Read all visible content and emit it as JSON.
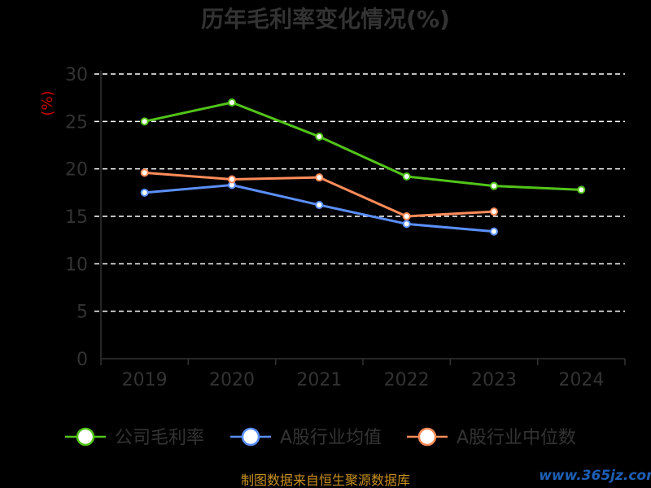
{
  "chart_data": {
    "type": "line",
    "title": "历年毛利率变化情况(%)",
    "ylabel": "(%)",
    "categories": [
      "2019",
      "2020",
      "2021",
      "2022",
      "2023",
      "2024"
    ],
    "ylim": [
      0,
      30
    ],
    "yticks": [
      0,
      5,
      10,
      15,
      20,
      25,
      30
    ],
    "grid": true,
    "legend_position": "bottom",
    "series": [
      {
        "name": "公司毛利率",
        "color": "#52c41a",
        "values": [
          25.0,
          27.0,
          23.4,
          19.2,
          18.2,
          17.8
        ]
      },
      {
        "name": "A股行业均值",
        "color": "#5b8ff9",
        "values": [
          17.5,
          18.3,
          16.2,
          14.2,
          13.4,
          null
        ]
      },
      {
        "name": "A股行业中位数",
        "color": "#ff8c5a",
        "values": [
          19.6,
          18.9,
          19.1,
          15.0,
          15.5,
          null
        ]
      }
    ]
  },
  "footer": {
    "source": "制图数据来自恒生聚源数据库",
    "watermark": "www.365jz.com"
  }
}
